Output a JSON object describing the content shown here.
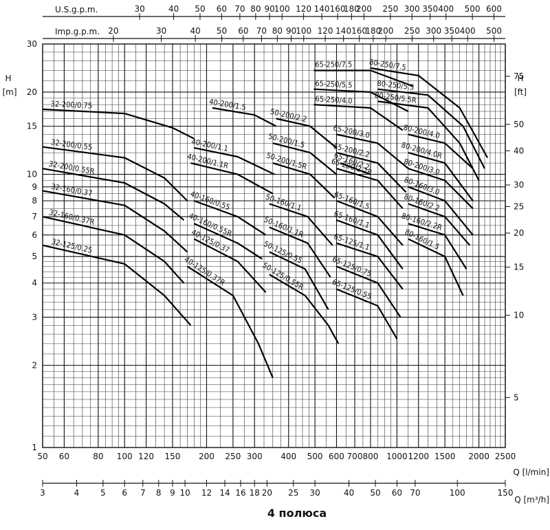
{
  "title": "4 полюса",
  "chart_data": {
    "type": "line",
    "x_scale": "log",
    "y_scale": "log",
    "xlabel": "Q [l/min]",
    "xlim": [
      50,
      2500
    ],
    "x_ticks": [
      50,
      60,
      80,
      100,
      120,
      150,
      200,
      250,
      300,
      400,
      500,
      600,
      700,
      800,
      1000,
      1200,
      1500,
      2000,
      2500
    ],
    "ylabel_left": "H",
    "ylabel_left_unit": "[m]",
    "ylim": [
      1,
      30
    ],
    "y_ticks": [
      1,
      2,
      3,
      4,
      5,
      6,
      7,
      8,
      9,
      10,
      15,
      20,
      30
    ],
    "ylabel_right": "H",
    "ylabel_right_unit": "[ft]",
    "y_right_ticks": [
      5,
      10,
      15,
      20,
      25,
      30,
      40,
      50,
      75
    ],
    "top_axis_1": {
      "label": "U.S.g.p.m.",
      "ticks": [
        30,
        40,
        50,
        60,
        70,
        80,
        90,
        100,
        120,
        140,
        160,
        180,
        200,
        250,
        300,
        350,
        400,
        500,
        600
      ]
    },
    "top_axis_2": {
      "label": "Imp.g.p.m.",
      "ticks": [
        20,
        30,
        40,
        50,
        60,
        70,
        80,
        90,
        100,
        120,
        140,
        160,
        180,
        200,
        250,
        300,
        350,
        400,
        500
      ]
    },
    "bottom_axis_2": {
      "label": "Q [m³/h]",
      "ticks": [
        3,
        4,
        5,
        6,
        7,
        8,
        9,
        10,
        12,
        14,
        16,
        18,
        20,
        25,
        30,
        40,
        50,
        60,
        70,
        100,
        150
      ]
    },
    "series": [
      {
        "name": "32-200/0.75",
        "points": [
          [
            50,
            17.3
          ],
          [
            100,
            16.7
          ],
          [
            150,
            14.8
          ],
          [
            180,
            13.5
          ]
        ]
      },
      {
        "name": "32-200/0.55",
        "points": [
          [
            50,
            12.6
          ],
          [
            100,
            11.5
          ],
          [
            140,
            9.7
          ],
          [
            170,
            8
          ]
        ]
      },
      {
        "name": "32-200/0.55R",
        "points": [
          [
            50,
            10.5
          ],
          [
            100,
            9.3
          ],
          [
            140,
            7.8
          ],
          [
            165,
            6.8
          ]
        ]
      },
      {
        "name": "32-160/0.37",
        "points": [
          [
            50,
            8.7
          ],
          [
            100,
            7.7
          ],
          [
            140,
            6.2
          ],
          [
            170,
            5.2
          ]
        ]
      },
      {
        "name": "32-160/0.37R",
        "points": [
          [
            50,
            7
          ],
          [
            100,
            6
          ],
          [
            140,
            4.8
          ],
          [
            165,
            4
          ]
        ]
      },
      {
        "name": "32-125/0.25",
        "points": [
          [
            50,
            5.5
          ],
          [
            100,
            4.7
          ],
          [
            140,
            3.6
          ],
          [
            175,
            2.8
          ]
        ]
      },
      {
        "name": "40-200/1.5",
        "points": [
          [
            210,
            17.5
          ],
          [
            300,
            16.5
          ],
          [
            360,
            15
          ]
        ]
      },
      {
        "name": "40-200/1.1",
        "points": [
          [
            180,
            12.5
          ],
          [
            260,
            11.6
          ],
          [
            355,
            10
          ]
        ]
      },
      {
        "name": "40-200/1.1R",
        "points": [
          [
            175,
            11
          ],
          [
            260,
            10
          ],
          [
            350,
            8.5
          ]
        ]
      },
      {
        "name": "40-160/0.55",
        "points": [
          [
            180,
            8
          ],
          [
            260,
            7
          ],
          [
            330,
            6
          ]
        ]
      },
      {
        "name": "40-160/0.55R",
        "points": [
          [
            180,
            6.6
          ],
          [
            260,
            5.6
          ],
          [
            320,
            4.9
          ]
        ]
      },
      {
        "name": "40-125/0.37",
        "points": [
          [
            180,
            5.8
          ],
          [
            260,
            4.8
          ],
          [
            330,
            3.7
          ]
        ]
      },
      {
        "name": "40-125/0.37R",
        "points": [
          [
            170,
            4.6
          ],
          [
            250,
            3.6
          ],
          [
            310,
            2.4
          ],
          [
            350,
            1.8
          ]
        ]
      },
      {
        "name": "50-200/2.2",
        "points": [
          [
            360,
            16
          ],
          [
            480,
            15
          ],
          [
            600,
            12.5
          ]
        ]
      },
      {
        "name": "50-200/1.5",
        "points": [
          [
            350,
            13
          ],
          [
            480,
            12
          ],
          [
            600,
            10
          ]
        ]
      },
      {
        "name": "50-200/1.5R",
        "points": [
          [
            350,
            11
          ],
          [
            480,
            10
          ],
          [
            590,
            8.2
          ]
        ]
      },
      {
        "name": "50-160/1.1",
        "points": [
          [
            340,
            7.8
          ],
          [
            470,
            7
          ],
          [
            580,
            5.5
          ]
        ]
      },
      {
        "name": "50-160/1.1R",
        "points": [
          [
            340,
            6.4
          ],
          [
            470,
            5.6
          ],
          [
            570,
            4.2
          ]
        ]
      },
      {
        "name": "50-125/0.55",
        "points": [
          [
            340,
            5.2
          ],
          [
            460,
            4.5
          ],
          [
            560,
            3.2
          ]
        ]
      },
      {
        "name": "50-125/0.55R",
        "points": [
          [
            340,
            4.3
          ],
          [
            460,
            3.6
          ],
          [
            560,
            2.8
          ],
          [
            610,
            2.4
          ]
        ]
      },
      {
        "name": "65-250/7.5",
        "points": [
          [
            495,
            24
          ],
          [
            800,
            24
          ],
          [
            1150,
            21
          ]
        ]
      },
      {
        "name": "65-250/5.5",
        "points": [
          [
            495,
            20.5
          ],
          [
            800,
            20
          ],
          [
            1100,
            17
          ]
        ]
      },
      {
        "name": "65-250/4.0",
        "points": [
          [
            495,
            18
          ],
          [
            800,
            17.5
          ],
          [
            1050,
            14.5
          ]
        ]
      },
      {
        "name": "65-200/3.0",
        "points": [
          [
            600,
            14
          ],
          [
            850,
            13
          ],
          [
            1100,
            10.5
          ]
        ]
      },
      {
        "name": "65-200/2.2",
        "points": [
          [
            600,
            12
          ],
          [
            850,
            11
          ],
          [
            1080,
            8.6
          ]
        ]
      },
      {
        "name": "65-200/2.2R",
        "points": [
          [
            600,
            10.5
          ],
          [
            850,
            9.5
          ],
          [
            1050,
            7.5
          ]
        ]
      },
      {
        "name": "65-160/2.2",
        "points": [
          [
            620,
            11
          ],
          [
            800,
            10
          ]
        ]
      },
      {
        "name": "65-160/1.5",
        "points": [
          [
            600,
            8
          ],
          [
            850,
            7
          ],
          [
            1050,
            5.5
          ]
        ]
      },
      {
        "name": "65-160/1.1",
        "points": [
          [
            600,
            6.8
          ],
          [
            850,
            6
          ],
          [
            1050,
            4.5
          ]
        ]
      },
      {
        "name": "65-125/1.1",
        "points": [
          [
            600,
            5.6
          ],
          [
            850,
            5
          ],
          [
            1050,
            3.8
          ]
        ]
      },
      {
        "name": "65-125/0.75",
        "points": [
          [
            600,
            4.6
          ],
          [
            850,
            4
          ],
          [
            1030,
            3
          ]
        ]
      },
      {
        "name": "65-125/0.55",
        "points": [
          [
            600,
            3.8
          ],
          [
            850,
            3.3
          ],
          [
            1000,
            2.5
          ]
        ]
      },
      {
        "name": "80-250/7.5",
        "points": [
          [
            800,
            24.5
          ],
          [
            1200,
            23
          ],
          [
            1700,
            17.5
          ],
          [
            2150,
            11.5
          ]
        ]
      },
      {
        "name": "80-250/5.5",
        "points": [
          [
            850,
            20.5
          ],
          [
            1300,
            19.5
          ],
          [
            1750,
            15
          ],
          [
            2100,
            10.5
          ]
        ]
      },
      {
        "name": "80-250/5.5R",
        "points": [
          [
            850,
            18.5
          ],
          [
            1300,
            17.5
          ],
          [
            1700,
            13
          ],
          [
            2000,
            9.5
          ]
        ]
      },
      {
        "name": "80-200/4.0",
        "points": [
          [
            1100,
            14
          ],
          [
            1500,
            13
          ],
          [
            1900,
            10.5
          ]
        ]
      },
      {
        "name": "80-200/4.0R",
        "points": [
          [
            1100,
            12
          ],
          [
            1500,
            11
          ],
          [
            1900,
            8
          ]
        ]
      },
      {
        "name": "80-200/3.0",
        "points": [
          [
            1100,
            10.5
          ],
          [
            1500,
            9.5
          ],
          [
            1900,
            7.5
          ]
        ]
      },
      {
        "name": "80-160/3.0",
        "points": [
          [
            1100,
            9
          ],
          [
            1500,
            8
          ],
          [
            1900,
            6
          ]
        ]
      },
      {
        "name": "80-160/2.2",
        "points": [
          [
            1100,
            7.8
          ],
          [
            1500,
            7
          ],
          [
            1850,
            5.5
          ]
        ]
      },
      {
        "name": "80-160/2.2R",
        "points": [
          [
            1100,
            6.6
          ],
          [
            1500,
            6
          ],
          [
            1800,
            4.5
          ]
        ]
      },
      {
        "name": "80-160/1.5",
        "points": [
          [
            1100,
            5.8
          ],
          [
            1500,
            5
          ],
          [
            1750,
            3.6
          ]
        ]
      }
    ]
  }
}
